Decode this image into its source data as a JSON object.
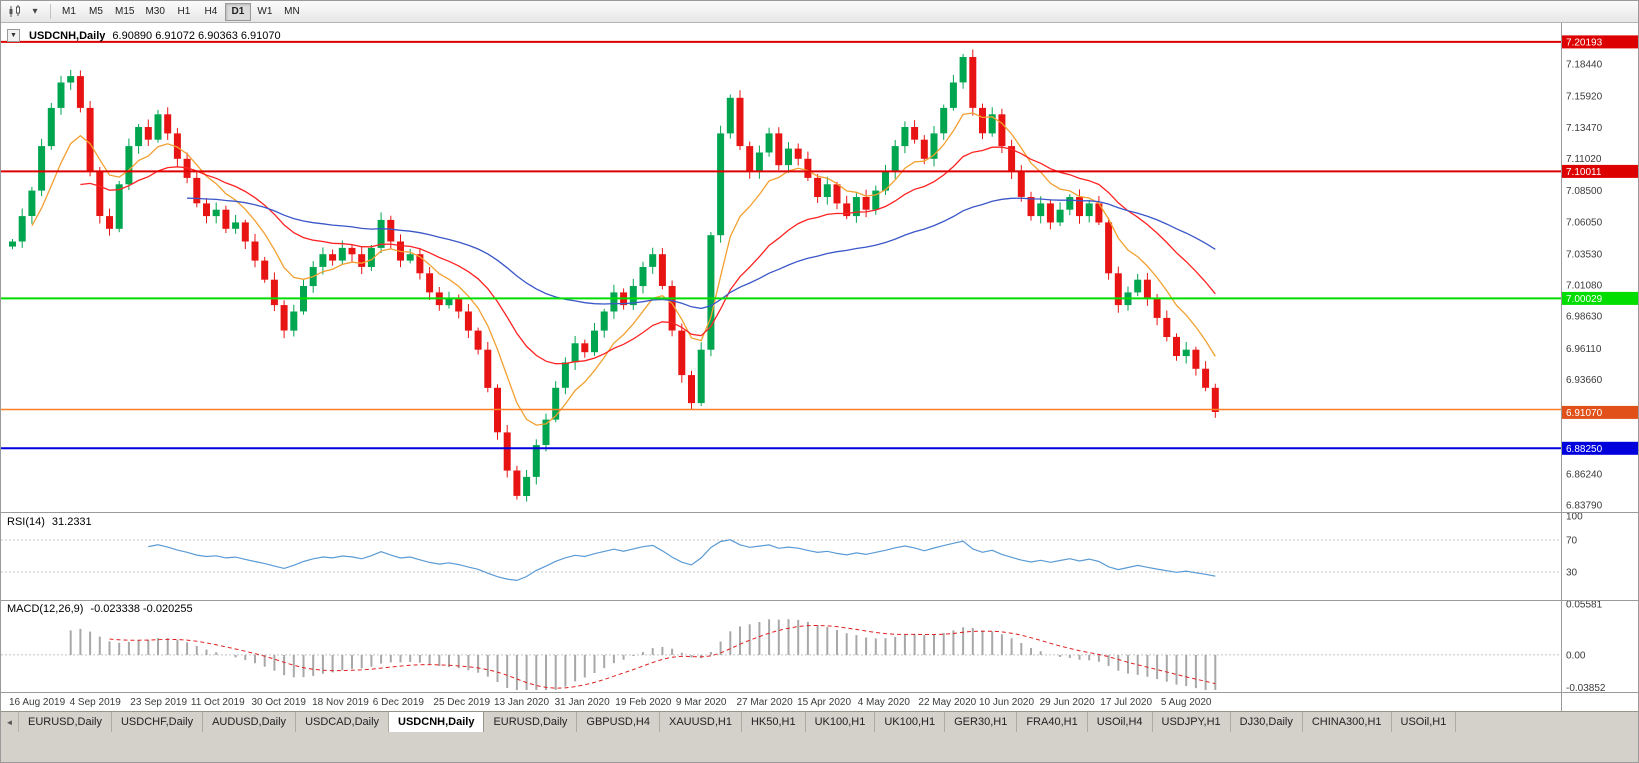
{
  "toolbar": {
    "timeframes": [
      "M1",
      "M5",
      "M15",
      "M30",
      "H1",
      "H4",
      "D1",
      "W1",
      "MN"
    ],
    "active_timeframe": "D1"
  },
  "chart_data": {
    "type": "candlestick",
    "symbol": "USDCNH",
    "timeframe": "Daily",
    "title": "USDCNH,Daily",
    "ohlc_string": "6.90890 6.91072 6.90363 6.91070",
    "ohlc_current": {
      "open": 6.9089,
      "high": 6.91072,
      "low": 6.90363,
      "close": 6.9107
    },
    "ylim": [
      6.8379,
      7.2089
    ],
    "up_color": "#00a550",
    "down_color": "#e81414",
    "y_axis_labels": [
      "7.18440",
      "7.15920",
      "7.13470",
      "7.11020",
      "7.08500",
      "7.06050",
      "7.03530",
      "7.01080",
      "6.98630",
      "6.96110",
      "6.93660",
      "6.86240",
      "6.83790"
    ],
    "x_axis_labels": [
      "16 Aug 2019",
      "4 Sep 2019",
      "23 Sep 2019",
      "11 Oct 2019",
      "30 Oct 2019",
      "18 Nov 2019",
      "6 Dec 2019",
      "25 Dec 2019",
      "13 Jan 2020",
      "31 Jan 2020",
      "19 Feb 2020",
      "9 Mar 2020",
      "27 Mar 2020",
      "15 Apr 2020",
      "4 May 2020",
      "22 May 2020",
      "10 Jun 2020",
      "29 Jun 2020",
      "17 Jul 2020",
      "5 Aug 2020"
    ],
    "closes": [
      7.045,
      7.065,
      7.085,
      7.12,
      7.15,
      7.17,
      7.175,
      7.15,
      7.1,
      7.065,
      7.055,
      7.09,
      7.12,
      7.135,
      7.125,
      7.145,
      7.13,
      7.11,
      7.095,
      7.075,
      7.065,
      7.07,
      7.055,
      7.06,
      7.045,
      7.03,
      7.015,
      6.995,
      6.975,
      6.99,
      7.01,
      7.025,
      7.035,
      7.03,
      7.04,
      7.035,
      7.025,
      7.04,
      7.062,
      7.045,
      7.03,
      7.035,
      7.02,
      7.005,
      6.995,
      7.0,
      6.99,
      6.975,
      6.96,
      6.93,
      6.895,
      6.865,
      6.845,
      6.86,
      6.885,
      6.905,
      6.93,
      6.95,
      6.965,
      6.958,
      6.975,
      6.99,
      7.005,
      6.995,
      7.01,
      7.025,
      7.035,
      7.01,
      6.975,
      6.94,
      6.918,
      6.96,
      7.05,
      7.13,
      7.158,
      7.12,
      7.1,
      7.115,
      7.13,
      7.105,
      7.118,
      7.11,
      7.095,
      7.08,
      7.09,
      7.075,
      7.065,
      7.08,
      7.07,
      7.085,
      7.1,
      7.12,
      7.135,
      7.125,
      7.11,
      7.13,
      7.15,
      7.17,
      7.19,
      7.15,
      7.13,
      7.145,
      7.12,
      7.1,
      7.08,
      7.065,
      7.075,
      7.06,
      7.07,
      7.08,
      7.065,
      7.075,
      7.06,
      7.02,
      6.995,
      7.005,
      7.015,
      7.0,
      6.985,
      6.97,
      6.955,
      6.96,
      6.945,
      6.93,
      6.911
    ],
    "moving_averages": [
      {
        "period": 8,
        "color": "#f2a030"
      },
      {
        "period": 21,
        "color": "#ff2222"
      },
      {
        "period": 55,
        "color": "#3a56c8"
      }
    ],
    "horizontal_lines": [
      {
        "label": "7.20193",
        "value": 7.20193,
        "color": "#dd0000",
        "width": 2,
        "badge": true
      },
      {
        "label": "7.10011",
        "value": 7.10011,
        "color": "#dd0000",
        "width": 2,
        "badge": true
      },
      {
        "label": "7.00029",
        "value": 7.00029,
        "color": "#00dd00",
        "width": 2,
        "badge": true
      },
      {
        "label": "",
        "value": 6.913,
        "color": "#ff7f27",
        "width": 1.5,
        "badge": false
      },
      {
        "label": "6.88250",
        "value": 6.8825,
        "color": "#0000dd",
        "width": 2,
        "badge": true
      }
    ],
    "current_price": {
      "label": "6.91070",
      "value": 6.9107,
      "color": "#e05018"
    },
    "indicators": [
      {
        "name": "RSI(14)",
        "value": "31.2331",
        "levels": [
          "100",
          "70",
          "30"
        ],
        "color": "#5b9bd5"
      },
      {
        "name": "MACD(12,26,9)",
        "values": "-0.023338 -0.020255",
        "axis_labels": [
          "0.05581",
          "0.00",
          "-0.03852"
        ],
        "range": [
          -0.03852,
          0.05581
        ],
        "histogram_color": "#a8a8a8",
        "signal_color": "#e02020"
      }
    ]
  },
  "tabs": {
    "scroll_icon": "◄",
    "items": [
      {
        "label": "EURUSD,Daily"
      },
      {
        "label": "USDCHF,Daily"
      },
      {
        "label": "AUDUSD,Daily"
      },
      {
        "label": "USDCAD,Daily"
      },
      {
        "label": "USDCNH,Daily",
        "active": true
      },
      {
        "label": "EURUSD,Daily"
      },
      {
        "label": "GBPUSD,H4"
      },
      {
        "label": "XAUUSD,H1"
      },
      {
        "label": "HK50,H1"
      },
      {
        "label": "UK100,H1"
      },
      {
        "label": "UK100,H1"
      },
      {
        "label": "GER30,H1"
      },
      {
        "label": "FRA40,H1"
      },
      {
        "label": "USOil,H4"
      },
      {
        "label": "USDJPY,H1"
      },
      {
        "label": "DJ30,Daily"
      },
      {
        "label": "CHINA300,H1"
      },
      {
        "label": "USOil,H1"
      }
    ]
  }
}
